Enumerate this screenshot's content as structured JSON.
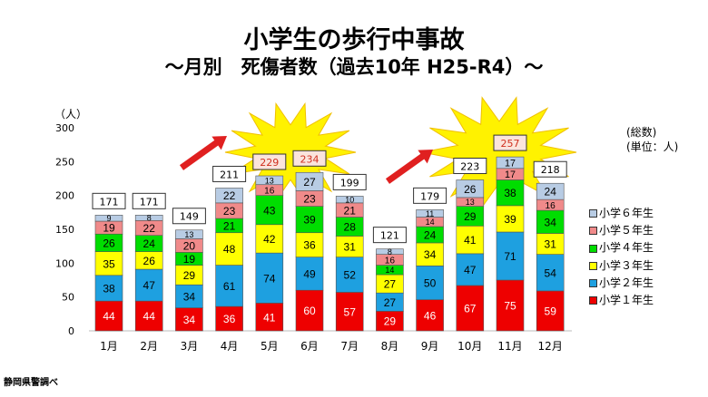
{
  "chart_data": {
    "type": "bar",
    "stacked": true,
    "title": "小学生の歩行中事故",
    "subtitle": "～月別　死傷者数（過去10年 H25-R4）～",
    "ylabel": "（人）",
    "unit_note": [
      "(総数)",
      "(単位：人)"
    ],
    "source": "静岡県警調べ",
    "ylim": [
      0,
      300
    ],
    "yticks": [
      0,
      50,
      100,
      150,
      200,
      250,
      300
    ],
    "grid": false,
    "legend_position": "right",
    "categories": [
      "1月",
      "2月",
      "3月",
      "4月",
      "5月",
      "6月",
      "7月",
      "8月",
      "9月",
      "10月",
      "11月",
      "12月"
    ],
    "series": [
      {
        "name": "小学１年生",
        "color": "#ee0000",
        "values": [
          44,
          44,
          34,
          36,
          41,
          60,
          57,
          29,
          46,
          67,
          75,
          59
        ]
      },
      {
        "name": "小学２年生",
        "color": "#1ea0e0",
        "values": [
          38,
          47,
          34,
          61,
          74,
          49,
          52,
          27,
          50,
          47,
          71,
          54
        ]
      },
      {
        "name": "小学３年生",
        "color": "#ffff00",
        "values": [
          35,
          26,
          29,
          48,
          42,
          36,
          31,
          27,
          34,
          41,
          39,
          31
        ]
      },
      {
        "name": "小学４年生",
        "color": "#00dd00",
        "values": [
          26,
          24,
          19,
          21,
          43,
          39,
          28,
          14,
          24,
          29,
          38,
          34
        ]
      },
      {
        "name": "小学５年生",
        "color": "#f08a8a",
        "values": [
          19,
          22,
          20,
          23,
          16,
          23,
          21,
          16,
          14,
          13,
          17,
          16
        ]
      },
      {
        "name": "小学６年生",
        "color": "#b8cce4",
        "values": [
          9,
          8,
          13,
          22,
          13,
          27,
          10,
          8,
          11,
          26,
          17,
          24
        ]
      }
    ],
    "totals": [
      171,
      171,
      149,
      211,
      229,
      234,
      199,
      121,
      179,
      223,
      257,
      218
    ],
    "highlighted_totals": [
      4,
      5,
      10
    ],
    "highlight_color": "#d03020"
  }
}
